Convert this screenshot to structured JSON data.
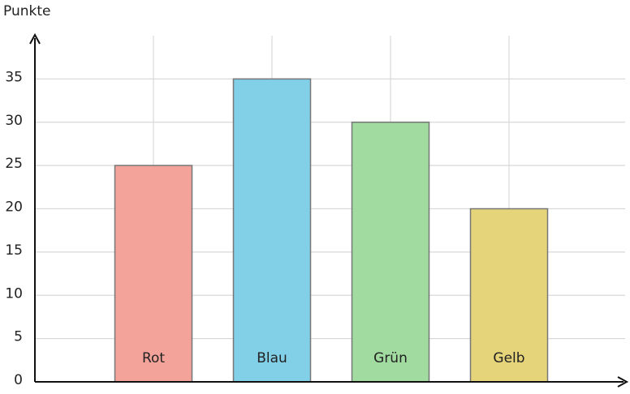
{
  "chart_data": {
    "type": "bar",
    "y_label": "Punkte",
    "categories": [
      "Rot",
      "Blau",
      "Grün",
      "Gelb"
    ],
    "values": [
      25,
      35,
      30,
      20
    ],
    "colors": [
      "#f4a39b",
      "#82cfe8",
      "#a1dba0",
      "#e5d47a"
    ],
    "ylim": [
      0,
      40
    ],
    "yticks": [
      0,
      5,
      10,
      15,
      20,
      25,
      30,
      35
    ],
    "grid": true
  }
}
